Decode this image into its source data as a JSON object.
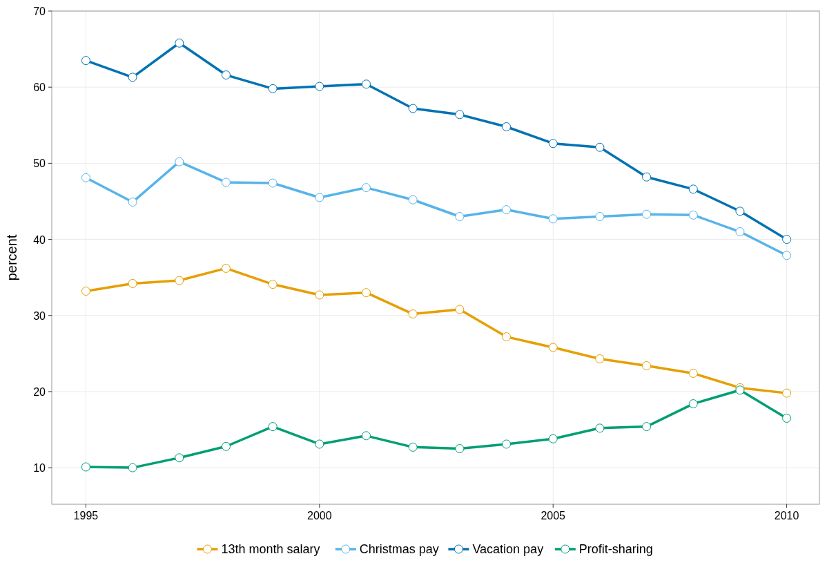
{
  "chart_data": {
    "type": "line",
    "ylabel": "percent",
    "x": [
      1995,
      1996,
      1997,
      1998,
      1999,
      2000,
      2001,
      2002,
      2003,
      2004,
      2005,
      2006,
      2007,
      2008,
      2009,
      2010
    ],
    "xlim": [
      1994.27,
      2010.7
    ],
    "xticks": [
      1995,
      2000,
      2005,
      2010
    ],
    "ylim": [
      5.2,
      70
    ],
    "yticks": [
      10,
      20,
      30,
      40,
      50,
      60,
      70
    ],
    "grid": true,
    "legend": "bottom",
    "marker": "circle",
    "line_style": "solid",
    "series": [
      {
        "name": "13th month salary",
        "color": "#e69f00",
        "values": [
          33.2,
          34.2,
          34.6,
          36.2,
          34.1,
          32.7,
          33.0,
          30.2,
          30.8,
          27.2,
          25.8,
          24.3,
          23.4,
          22.4,
          20.5,
          19.8
        ]
      },
      {
        "name": "Christmas pay",
        "color": "#56b4e9",
        "values": [
          48.1,
          44.9,
          50.2,
          47.5,
          47.4,
          45.5,
          46.8,
          45.2,
          43.0,
          43.9,
          42.7,
          43.0,
          43.3,
          43.2,
          41.0,
          37.9
        ]
      },
      {
        "name": "Vacation pay",
        "color": "#0072b2",
        "values": [
          63.5,
          61.3,
          65.8,
          61.6,
          59.8,
          60.1,
          60.4,
          57.2,
          56.4,
          54.8,
          52.6,
          52.1,
          48.2,
          46.6,
          43.7,
          40.0
        ]
      },
      {
        "name": "Profit-sharing",
        "color": "#009e73",
        "values": [
          10.1,
          10.0,
          11.3,
          12.8,
          15.4,
          13.1,
          14.2,
          12.7,
          12.5,
          13.1,
          13.8,
          15.2,
          15.4,
          18.4,
          20.2,
          16.5
        ]
      }
    ]
  }
}
